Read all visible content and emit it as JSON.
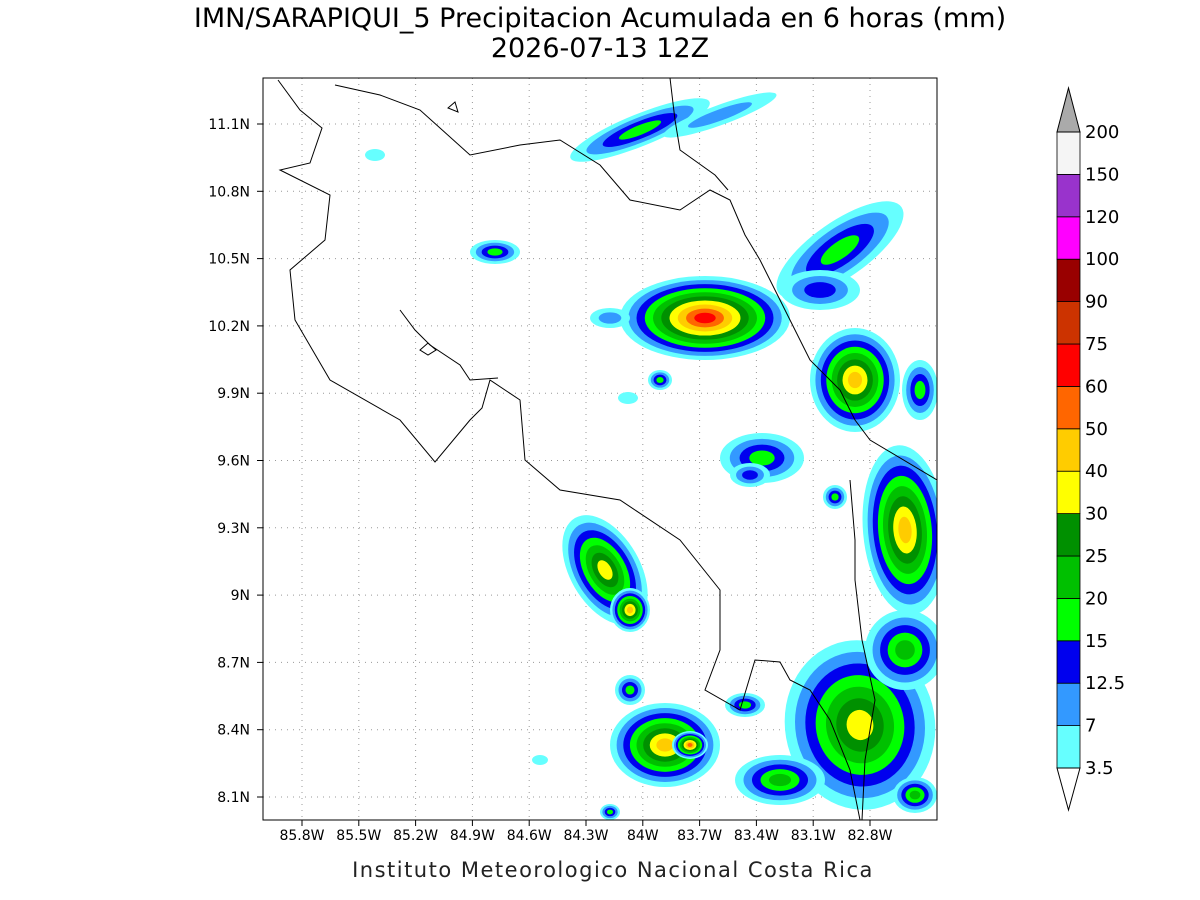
{
  "header": {
    "title": "IMN/SARAPIQUI_5 Precipitacion Acumulada en 6 horas (mm)",
    "subtitle": "2026-07-13 12Z"
  },
  "map": {
    "lat_labels": [
      "11.1N",
      "10.8N",
      "10.5N",
      "10.2N",
      "9.9N",
      "9.6N",
      "9.3N",
      "9N",
      "8.7N",
      "8.4N",
      "8.1N"
    ],
    "lon_labels": [
      "85.8W",
      "85.5W",
      "85.2W",
      "84.9W",
      "84.6W",
      "84.3W",
      "84W",
      "83.7W",
      "83.4W",
      "83.1W",
      "82.8W"
    ]
  },
  "colorbar": {
    "labels": [
      "3.5",
      "7",
      "12.5",
      "15",
      "20",
      "25",
      "30",
      "40",
      "50",
      "60",
      "75",
      "90",
      "100",
      "120",
      "150",
      "200"
    ],
    "band_colors": [
      "#66ffff",
      "#3399ff",
      "#0000ee",
      "#00ff00",
      "#00c000",
      "#009000",
      "#ffff00",
      "#ffcc00",
      "#ff6600",
      "#ff0000",
      "#cc3300",
      "#990000",
      "#ff00ff",
      "#9933cc",
      "#f5f5f5"
    ],
    "over_color": "#aaaaaa",
    "under_color": "#ffffff"
  },
  "footer": {
    "credit": "Instituto Meteorologico Nacional Costa Rica"
  }
}
